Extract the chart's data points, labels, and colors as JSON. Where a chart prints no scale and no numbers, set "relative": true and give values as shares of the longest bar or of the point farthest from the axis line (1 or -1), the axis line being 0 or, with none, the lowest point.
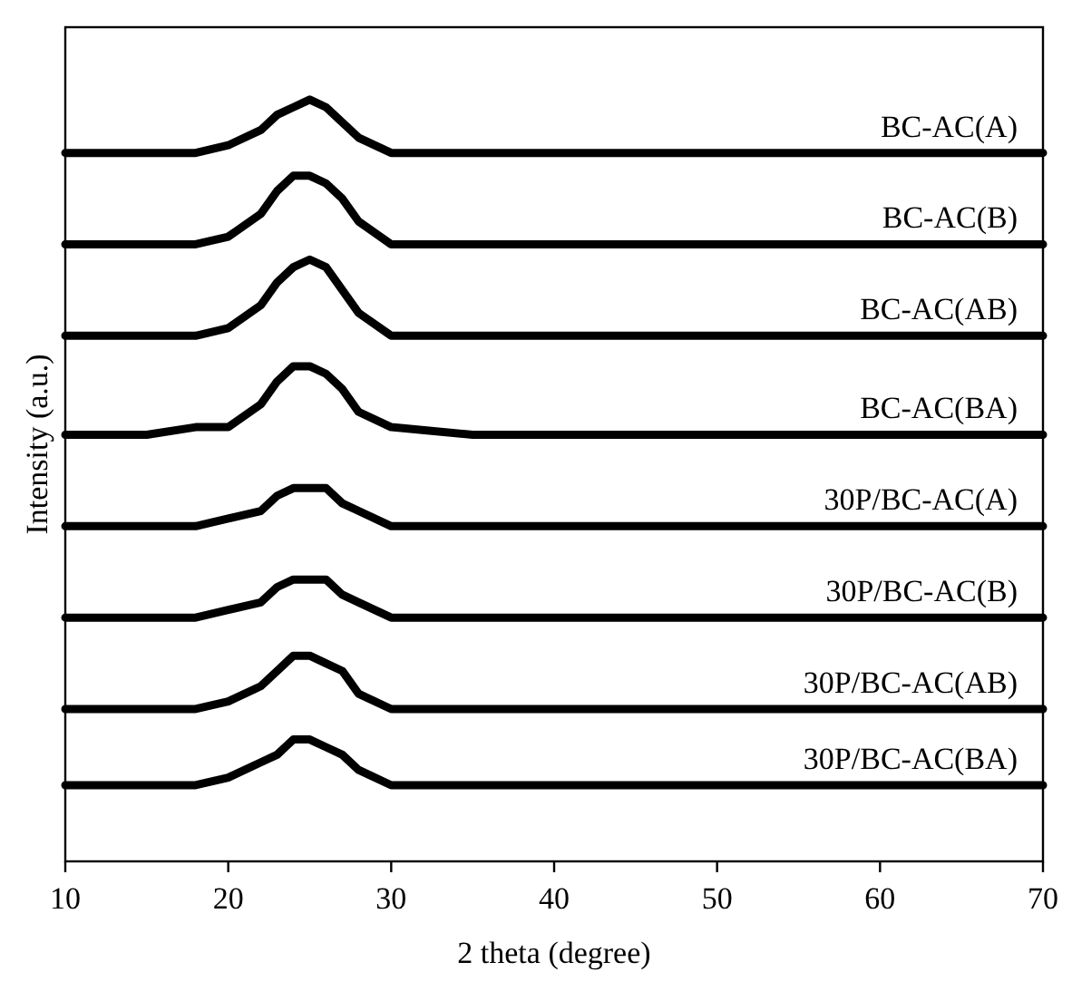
{
  "chart_data": {
    "type": "line",
    "relative": true,
    "xlabel": "2 theta (degree)",
    "ylabel": "Intensity (a.u.)",
    "xlim": [
      10,
      70
    ],
    "xticks": [
      10,
      20,
      30,
      40,
      50,
      60,
      70
    ],
    "x": [
      10,
      15,
      18,
      20,
      22,
      23,
      24,
      25,
      26,
      27,
      28,
      30,
      35,
      40,
      50,
      60,
      70
    ],
    "marker": "none",
    "line_style": "solid",
    "legend": false,
    "grid": false,
    "series": [
      {
        "name": "BC-AC(A)",
        "color": "#000000",
        "values": [
          0.93,
          0.93,
          0.93,
          0.94,
          0.96,
          0.98,
          0.99,
          1.0,
          0.99,
          0.97,
          0.95,
          0.93,
          0.93,
          0.93,
          0.93,
          0.93,
          0.93
        ]
      },
      {
        "name": "BC-AC(B)",
        "color": "#000000",
        "values": [
          0.81,
          0.81,
          0.81,
          0.82,
          0.85,
          0.88,
          0.9,
          0.9,
          0.89,
          0.87,
          0.84,
          0.81,
          0.81,
          0.81,
          0.81,
          0.81,
          0.81
        ]
      },
      {
        "name": "BC-AC(AB)",
        "color": "#000000",
        "values": [
          0.69,
          0.69,
          0.69,
          0.7,
          0.73,
          0.76,
          0.78,
          0.79,
          0.78,
          0.75,
          0.72,
          0.69,
          0.69,
          0.69,
          0.69,
          0.69,
          0.69
        ]
      },
      {
        "name": "BC-AC(BA)",
        "color": "#000000",
        "values": [
          0.56,
          0.56,
          0.57,
          0.57,
          0.6,
          0.63,
          0.65,
          0.65,
          0.64,
          0.62,
          0.59,
          0.57,
          0.56,
          0.56,
          0.56,
          0.56,
          0.56
        ]
      },
      {
        "name": "30P/BC-AC(A)",
        "color": "#000000",
        "values": [
          0.44,
          0.44,
          0.44,
          0.45,
          0.46,
          0.48,
          0.49,
          0.49,
          0.49,
          0.47,
          0.46,
          0.44,
          0.44,
          0.44,
          0.44,
          0.44,
          0.44
        ]
      },
      {
        "name": "30P/BC-AC(B)",
        "color": "#000000",
        "values": [
          0.32,
          0.32,
          0.32,
          0.33,
          0.34,
          0.36,
          0.37,
          0.37,
          0.37,
          0.35,
          0.34,
          0.32,
          0.32,
          0.32,
          0.32,
          0.32,
          0.32
        ]
      },
      {
        "name": "30P/BC-AC(AB)",
        "color": "#000000",
        "values": [
          0.2,
          0.2,
          0.2,
          0.21,
          0.23,
          0.25,
          0.27,
          0.27,
          0.26,
          0.25,
          0.22,
          0.2,
          0.2,
          0.2,
          0.2,
          0.2,
          0.2
        ]
      },
      {
        "name": "30P/BC-AC(BA)",
        "color": "#000000",
        "values": [
          0.1,
          0.1,
          0.1,
          0.11,
          0.13,
          0.14,
          0.16,
          0.16,
          0.15,
          0.14,
          0.12,
          0.1,
          0.1,
          0.1,
          0.1,
          0.1,
          0.1
        ]
      }
    ]
  }
}
